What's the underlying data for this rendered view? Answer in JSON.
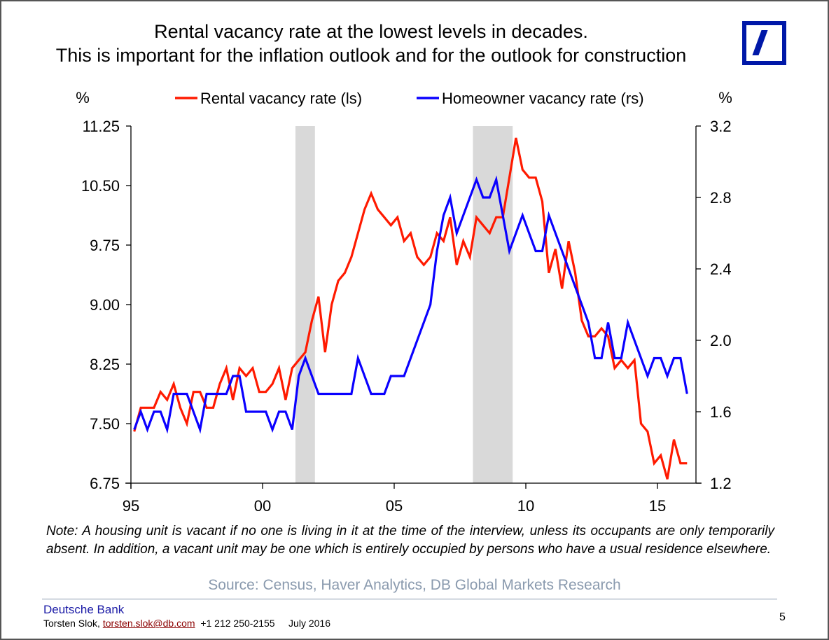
{
  "title": {
    "line1": "Rental vacancy rate at the lowest levels in decades.",
    "line2": "This is important for the inflation outlook and for the outlook for construction"
  },
  "logo": {
    "name": "Deutsche Bank logo",
    "color": "#0018a8"
  },
  "chart_data": {
    "type": "line",
    "title": "Rental vacancy rate at the lowest levels in decades. This is important for the inflation outlook and for the outlook for construction",
    "left_axis": {
      "unit_label": "%",
      "ticks": [
        "11.25",
        "10.50",
        "9.75",
        "9.00",
        "8.25",
        "7.50",
        "6.75"
      ],
      "ylim": [
        6.75,
        11.25
      ]
    },
    "right_axis": {
      "unit_label": "%",
      "ticks": [
        "3.2",
        "2.8",
        "2.4",
        "2.0",
        "1.6",
        "1.2"
      ],
      "ylim": [
        1.2,
        3.2
      ]
    },
    "x_axis": {
      "ticks": [
        "95",
        "00",
        "05",
        "10",
        "15"
      ],
      "tick_years": [
        1995,
        2000,
        2005,
        2010,
        2015
      ],
      "xlim": [
        1995,
        2016.5
      ],
      "frequency": "quarterly",
      "start": 1995.0
    },
    "grid": false,
    "legend_position": "top-center",
    "recessions": [
      [
        2001.25,
        2001.99
      ],
      [
        2007.99,
        2009.5
      ]
    ],
    "series": [
      {
        "name": "Rental vacancy rate (ls)",
        "axis": "left",
        "color": "#ff1a00",
        "values": [
          7.4,
          7.7,
          7.7,
          7.7,
          7.9,
          7.8,
          8.0,
          7.7,
          7.5,
          7.9,
          7.9,
          7.7,
          7.7,
          8.0,
          8.2,
          7.8,
          8.2,
          8.1,
          8.2,
          7.9,
          7.9,
          8.0,
          8.2,
          7.8,
          8.2,
          8.3,
          8.4,
          8.8,
          9.1,
          8.4,
          9.0,
          9.3,
          9.4,
          9.6,
          9.9,
          10.2,
          10.4,
          10.2,
          10.1,
          10.0,
          10.1,
          9.8,
          9.9,
          9.6,
          9.5,
          9.6,
          9.9,
          9.8,
          10.1,
          9.5,
          9.8,
          9.6,
          10.1,
          10.0,
          9.9,
          10.1,
          10.1,
          10.6,
          11.1,
          10.7,
          10.6,
          10.6,
          10.3,
          9.4,
          9.7,
          9.2,
          9.8,
          9.4,
          8.8,
          8.6,
          8.6,
          8.7,
          8.6,
          8.2,
          8.3,
          8.2,
          8.3,
          7.5,
          7.4,
          7.0,
          7.1,
          6.8,
          7.3,
          7.0,
          7.0
        ]
      },
      {
        "name": "Homeowner vacancy rate (rs)",
        "axis": "right",
        "color": "#0a00ff",
        "values": [
          1.5,
          1.6,
          1.5,
          1.6,
          1.6,
          1.5,
          1.7,
          1.7,
          1.7,
          1.6,
          1.5,
          1.7,
          1.7,
          1.7,
          1.7,
          1.8,
          1.8,
          1.6,
          1.6,
          1.6,
          1.6,
          1.5,
          1.6,
          1.6,
          1.5,
          1.8,
          1.9,
          1.8,
          1.7,
          1.7,
          1.7,
          1.7,
          1.7,
          1.7,
          1.9,
          1.8,
          1.7,
          1.7,
          1.7,
          1.8,
          1.8,
          1.8,
          1.9,
          2.0,
          2.1,
          2.2,
          2.5,
          2.7,
          2.8,
          2.6,
          2.7,
          2.8,
          2.9,
          2.8,
          2.8,
          2.9,
          2.7,
          2.5,
          2.6,
          2.7,
          2.6,
          2.5,
          2.5,
          2.7,
          2.6,
          2.5,
          2.4,
          2.3,
          2.2,
          2.1,
          1.9,
          1.9,
          2.1,
          1.9,
          1.9,
          2.1,
          2.0,
          1.9,
          1.8,
          1.9,
          1.9,
          1.8,
          1.9,
          1.9,
          1.7
        ]
      }
    ]
  },
  "note": "Note: A housing unit is vacant if no one is living in it at the time of the interview, unless its occupants are only temporarily absent. In addition, a vacant unit may be one which is entirely occupied by persons who have a usual residence elsewhere.",
  "source": "Source: Census, Haver Analytics, DB Global Markets Research",
  "footer": {
    "company": "Deutsche Bank",
    "author": "Torsten Slok,",
    "email": "torsten.slok@db.com",
    "phone": "+1 212 250-2155",
    "date": "July 2016",
    "page_number": "5"
  }
}
